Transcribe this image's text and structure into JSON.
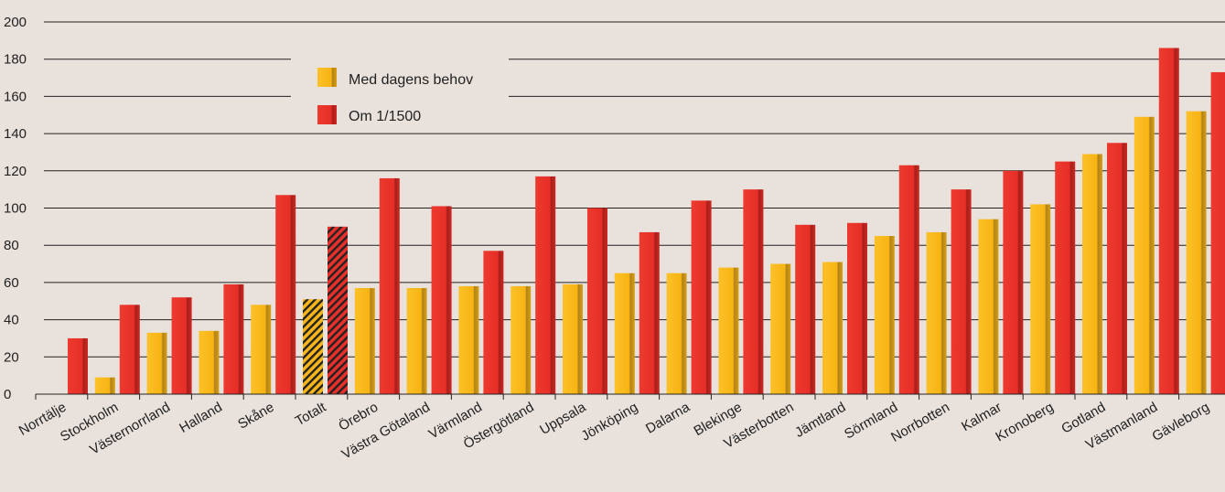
{
  "chart_data": {
    "type": "bar",
    "ylim": [
      0,
      200
    ],
    "yticks": [
      0,
      20,
      40,
      60,
      80,
      100,
      120,
      140,
      160,
      180,
      200
    ],
    "grid": true,
    "legend_position": "top-left",
    "categories": [
      "Norrtälje",
      "Stockholm",
      "Västernorrland",
      "Halland",
      "Skåne",
      "Totalt",
      "Örebro",
      "Västra Götaland",
      "Värmland",
      "Östergötland",
      "Uppsala",
      "Jönköping",
      "Dalarna",
      "Blekinge",
      "Västerbotten",
      "Jämtland",
      "Sörmland",
      "Norrbotten",
      "Kalmar",
      "Kronoberg",
      "Gotland",
      "Västmanland",
      "Gävleborg"
    ],
    "highlighted_category": "Totalt",
    "series": [
      {
        "name": "Med dagens behov",
        "color": "#f9b51a",
        "values": [
          0,
          9,
          33,
          34,
          48,
          51,
          57,
          57,
          58,
          58,
          59,
          65,
          65,
          68,
          70,
          71,
          85,
          87,
          94,
          102,
          129,
          149,
          152
        ]
      },
      {
        "name": "Om 1/1500",
        "color": "#e8302a",
        "values": [
          30,
          48,
          52,
          59,
          107,
          90,
          116,
          101,
          77,
          117,
          100,
          87,
          104,
          110,
          91,
          92,
          123,
          110,
          120,
          125,
          135,
          186,
          173
        ]
      }
    ]
  }
}
